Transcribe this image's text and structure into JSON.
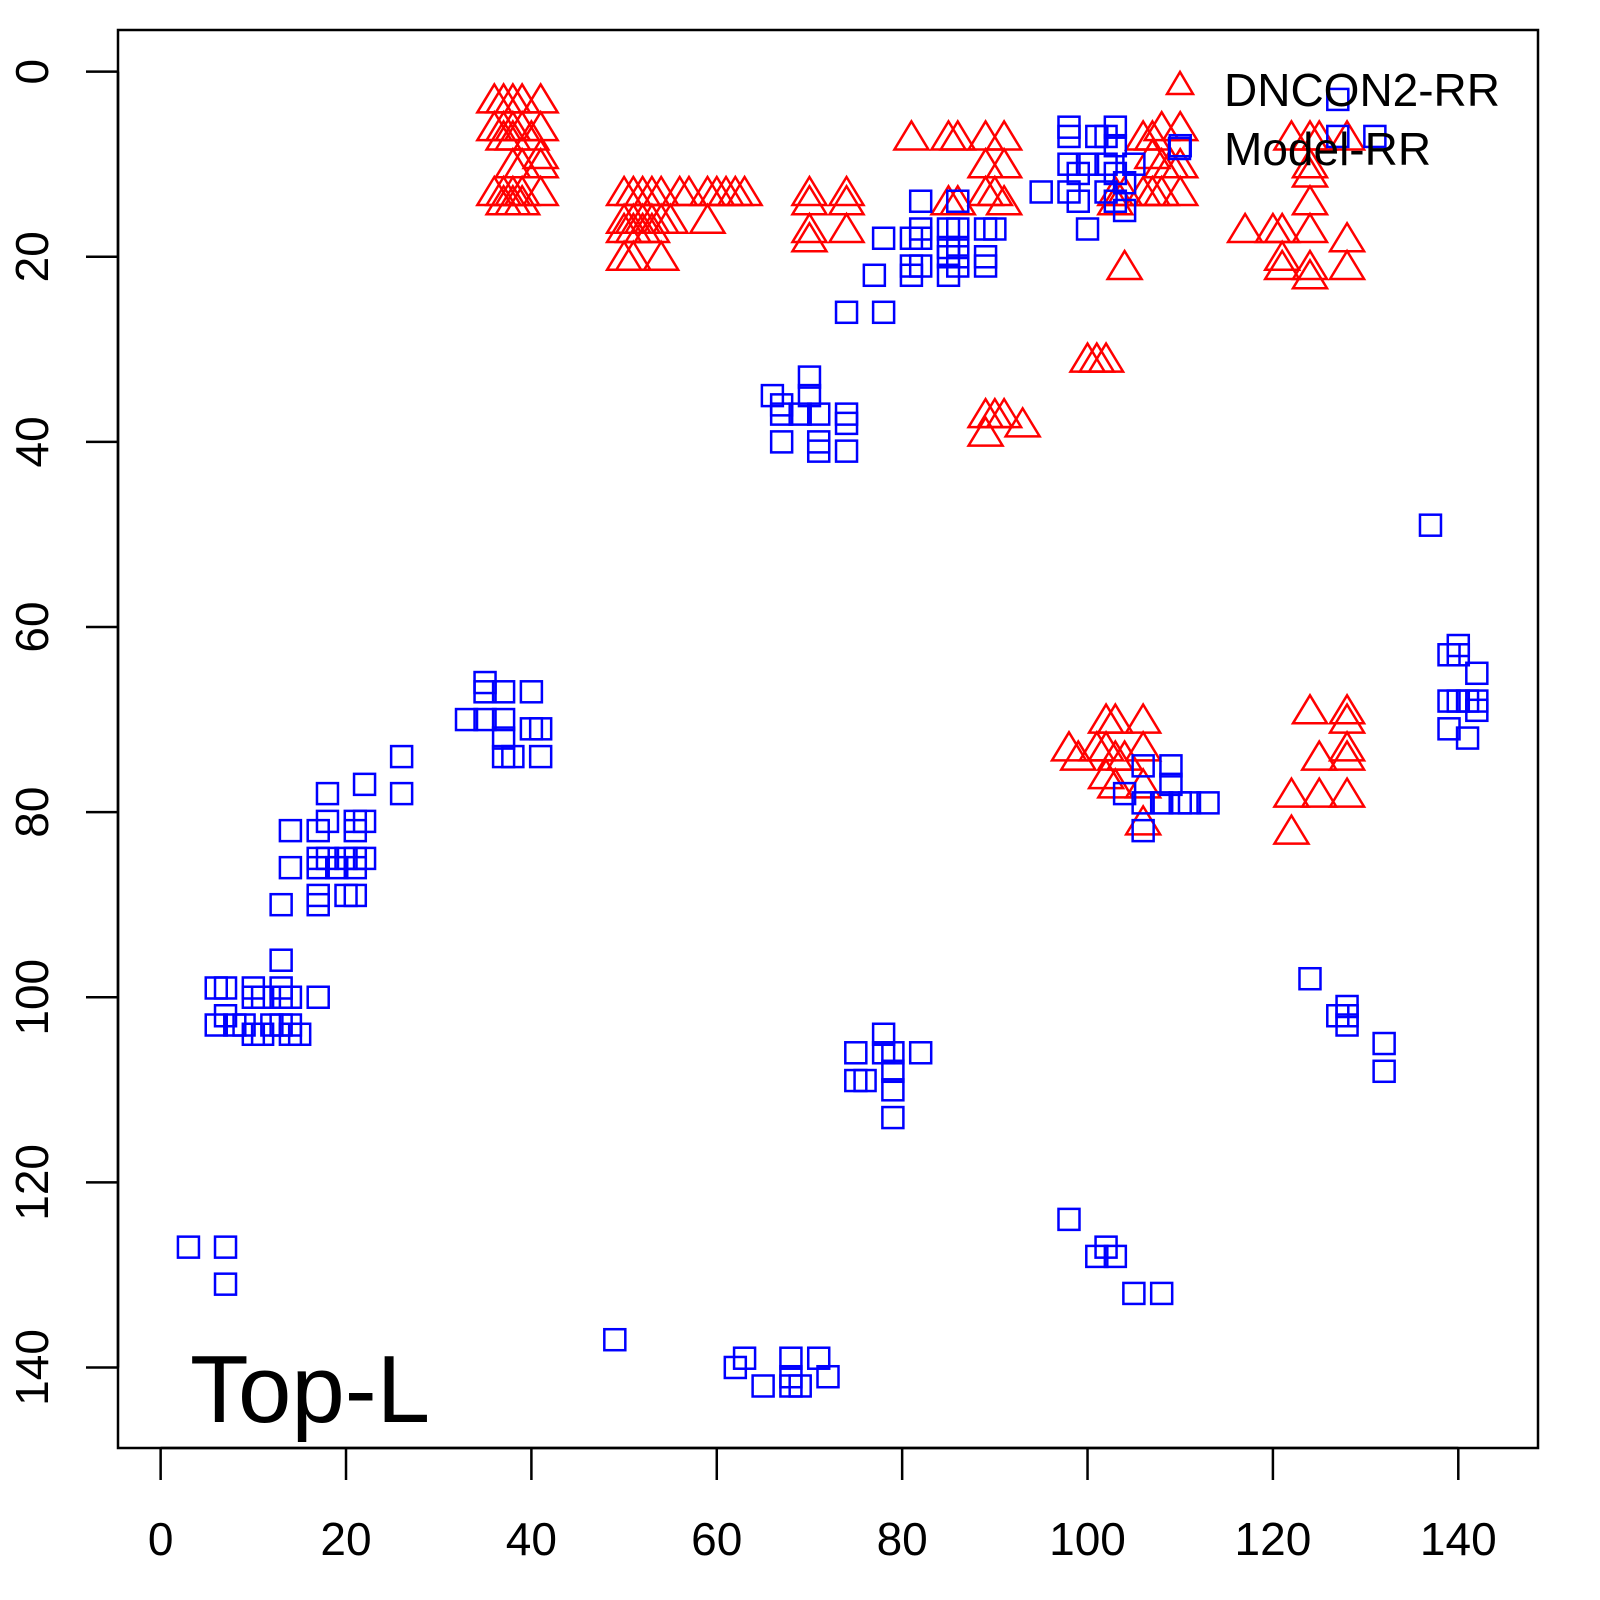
{
  "chart_data": {
    "type": "scatter",
    "title": "",
    "annotation": "Top-L",
    "xlabel": "",
    "ylabel": "",
    "xlim": [
      -4.6,
      148.6
    ],
    "ylim": [
      -4.5,
      148.7
    ],
    "y_inverted": true,
    "x_ticks": [
      "0",
      "20",
      "40",
      "60",
      "80",
      "100",
      "120",
      "140"
    ],
    "y_ticks": [
      "0",
      "20",
      "40",
      "60",
      "80",
      "100",
      "120",
      "140"
    ],
    "grid": false,
    "legend": {
      "placement": "top-right",
      "entries": [
        "DNCON2-RR",
        "Model-RR"
      ]
    },
    "series": [
      {
        "name": "DNCON2-RR",
        "marker": "triangle",
        "color": "#ff0000",
        "points": [
          [
            36,
            3
          ],
          [
            37,
            3
          ],
          [
            38,
            3
          ],
          [
            39,
            3
          ],
          [
            41,
            3
          ],
          [
            36,
            6
          ],
          [
            37,
            6
          ],
          [
            38,
            6
          ],
          [
            39,
            6
          ],
          [
            41,
            6
          ],
          [
            37,
            7
          ],
          [
            38,
            7
          ],
          [
            40,
            7
          ],
          [
            38,
            10
          ],
          [
            39,
            10
          ],
          [
            41,
            10
          ],
          [
            41,
            9
          ],
          [
            36,
            13
          ],
          [
            37,
            13
          ],
          [
            38,
            13
          ],
          [
            39,
            13
          ],
          [
            41,
            13
          ],
          [
            37,
            14
          ],
          [
            38,
            14
          ],
          [
            39,
            14
          ],
          [
            50,
            13
          ],
          [
            51,
            13
          ],
          [
            52,
            13
          ],
          [
            53,
            13
          ],
          [
            54,
            13
          ],
          [
            56,
            13
          ],
          [
            57,
            13
          ],
          [
            59,
            13
          ],
          [
            60,
            13
          ],
          [
            61,
            13
          ],
          [
            62,
            13
          ],
          [
            63,
            13
          ],
          [
            50,
            16
          ],
          [
            51,
            16
          ],
          [
            52,
            16
          ],
          [
            53,
            16
          ],
          [
            54,
            16
          ],
          [
            55,
            16
          ],
          [
            59,
            16
          ],
          [
            50,
            17
          ],
          [
            51,
            17
          ],
          [
            52,
            17
          ],
          [
            53,
            17
          ],
          [
            50,
            20
          ],
          [
            51,
            20
          ],
          [
            54,
            20
          ],
          [
            70,
            13
          ],
          [
            74,
            13
          ],
          [
            70,
            14
          ],
          [
            74,
            14
          ],
          [
            70,
            17
          ],
          [
            74,
            17
          ],
          [
            70,
            18
          ],
          [
            81,
            7
          ],
          [
            85,
            7
          ],
          [
            86,
            7
          ],
          [
            89,
            7
          ],
          [
            91,
            7
          ],
          [
            89,
            10
          ],
          [
            91,
            10
          ],
          [
            85,
            14
          ],
          [
            86,
            14
          ],
          [
            89,
            13
          ],
          [
            91,
            14
          ],
          [
            90,
            13
          ],
          [
            89,
            37
          ],
          [
            90,
            37
          ],
          [
            91,
            37
          ],
          [
            93,
            38
          ],
          [
            89,
            39
          ],
          [
            100,
            31
          ],
          [
            101,
            31
          ],
          [
            102,
            31
          ],
          [
            103,
            13
          ],
          [
            104,
            13
          ],
          [
            106,
            13
          ],
          [
            107,
            13
          ],
          [
            108,
            13
          ],
          [
            110,
            13
          ],
          [
            106,
            7
          ],
          [
            107,
            7
          ],
          [
            108,
            6
          ],
          [
            110,
            6
          ],
          [
            108,
            10
          ],
          [
            109,
            10
          ],
          [
            110,
            10
          ],
          [
            104,
            21
          ],
          [
            103,
            14
          ],
          [
            107,
            9
          ],
          [
            122,
            7
          ],
          [
            124,
            7
          ],
          [
            125,
            7
          ],
          [
            128,
            7
          ],
          [
            124,
            10
          ],
          [
            124,
            11
          ],
          [
            124,
            14
          ],
          [
            117,
            17
          ],
          [
            120,
            17
          ],
          [
            121,
            17
          ],
          [
            124,
            17
          ],
          [
            128,
            18
          ],
          [
            121,
            20
          ],
          [
            121,
            21
          ],
          [
            124,
            21
          ],
          [
            124,
            22
          ],
          [
            128,
            21
          ],
          [
            98,
            73
          ],
          [
            99,
            74
          ],
          [
            102,
            70
          ],
          [
            103,
            70
          ],
          [
            106,
            70
          ],
          [
            101,
            73
          ],
          [
            102,
            73
          ],
          [
            103,
            74
          ],
          [
            106,
            73
          ],
          [
            102,
            76
          ],
          [
            103,
            77
          ],
          [
            106,
            77
          ],
          [
            106,
            81
          ],
          [
            104,
            74
          ],
          [
            124,
            69
          ],
          [
            128,
            69
          ],
          [
            128,
            70
          ],
          [
            125,
            74
          ],
          [
            128,
            73
          ],
          [
            128,
            74
          ],
          [
            122,
            78
          ],
          [
            125,
            78
          ],
          [
            128,
            78
          ],
          [
            122,
            82
          ]
        ]
      },
      {
        "name": "Model-RR",
        "marker": "square",
        "color": "#0000ff",
        "points": [
          [
            3,
            127
          ],
          [
            7,
            127
          ],
          [
            7,
            131
          ],
          [
            49,
            137
          ],
          [
            62,
            140
          ],
          [
            63,
            139
          ],
          [
            65,
            142
          ],
          [
            68,
            139
          ],
          [
            68,
            141
          ],
          [
            68,
            142
          ],
          [
            69,
            142
          ],
          [
            71,
            139
          ],
          [
            72,
            141
          ],
          [
            98,
            124
          ],
          [
            101,
            128
          ],
          [
            102,
            127
          ],
          [
            103,
            128
          ],
          [
            105,
            132
          ],
          [
            108,
            132
          ],
          [
            75,
            106
          ],
          [
            75,
            109
          ],
          [
            76,
            109
          ],
          [
            78,
            104
          ],
          [
            78,
            106
          ],
          [
            79,
            106
          ],
          [
            79,
            108
          ],
          [
            79,
            110
          ],
          [
            79,
            113
          ],
          [
            82,
            106
          ],
          [
            124,
            98
          ],
          [
            127,
            102
          ],
          [
            128,
            101
          ],
          [
            128,
            102
          ],
          [
            128,
            103
          ],
          [
            132,
            105
          ],
          [
            132,
            108
          ],
          [
            137,
            49
          ],
          [
            139,
            63
          ],
          [
            140,
            62
          ],
          [
            140,
            63
          ],
          [
            139,
            68
          ],
          [
            140,
            68
          ],
          [
            141,
            68
          ],
          [
            142,
            65
          ],
          [
            142,
            68
          ],
          [
            142,
            69
          ],
          [
            139,
            71
          ],
          [
            141,
            72
          ],
          [
            104,
            78
          ],
          [
            106,
            75
          ],
          [
            106,
            79
          ],
          [
            106,
            82
          ],
          [
            108,
            79
          ],
          [
            109,
            75
          ],
          [
            109,
            77
          ],
          [
            110,
            79
          ],
          [
            111,
            79
          ],
          [
            113,
            79
          ],
          [
            6,
            99
          ],
          [
            7,
            99
          ],
          [
            6,
            103
          ],
          [
            7,
            102
          ],
          [
            8,
            103
          ],
          [
            9,
            103
          ],
          [
            10,
            99
          ],
          [
            10,
            100
          ],
          [
            11,
            100
          ],
          [
            12,
            103
          ],
          [
            10,
            104
          ],
          [
            11,
            104
          ],
          [
            13,
            96
          ],
          [
            13,
            99
          ],
          [
            13,
            100
          ],
          [
            14,
            103
          ],
          [
            14,
            100
          ],
          [
            14,
            104
          ],
          [
            15,
            104
          ],
          [
            17,
            100
          ],
          [
            13,
            103
          ],
          [
            13,
            90
          ],
          [
            14,
            82
          ],
          [
            14,
            86
          ],
          [
            17,
            82
          ],
          [
            17,
            85
          ],
          [
            17,
            86
          ],
          [
            17,
            89
          ],
          [
            17,
            90
          ],
          [
            18,
            78
          ],
          [
            18,
            81
          ],
          [
            18,
            85
          ],
          [
            19,
            86
          ],
          [
            20,
            85
          ],
          [
            20,
            89
          ],
          [
            21,
            81
          ],
          [
            21,
            82
          ],
          [
            21,
            85
          ],
          [
            21,
            86
          ],
          [
            21,
            89
          ],
          [
            22,
            77
          ],
          [
            22,
            81
          ],
          [
            22,
            85
          ],
          [
            26,
            74
          ],
          [
            26,
            78
          ],
          [
            33,
            70
          ],
          [
            35,
            66
          ],
          [
            35,
            67
          ],
          [
            35,
            70
          ],
          [
            37,
            67
          ],
          [
            37,
            70
          ],
          [
            37,
            72
          ],
          [
            37,
            74
          ],
          [
            38,
            74
          ],
          [
            40,
            67
          ],
          [
            40,
            71
          ],
          [
            41,
            71
          ],
          [
            41,
            74
          ],
          [
            66,
            35
          ],
          [
            67,
            36
          ],
          [
            67,
            37
          ],
          [
            67,
            40
          ],
          [
            69,
            37
          ],
          [
            70,
            33
          ],
          [
            70,
            35
          ],
          [
            71,
            37
          ],
          [
            71,
            40
          ],
          [
            71,
            41
          ],
          [
            74,
            37
          ],
          [
            74,
            38
          ],
          [
            74,
            41
          ],
          [
            74,
            26
          ],
          [
            77,
            22
          ],
          [
            78,
            18
          ],
          [
            78,
            26
          ],
          [
            81,
            18
          ],
          [
            81,
            21
          ],
          [
            81,
            22
          ],
          [
            82,
            14
          ],
          [
            82,
            17
          ],
          [
            82,
            18
          ],
          [
            82,
            21
          ],
          [
            85,
            17
          ],
          [
            85,
            19
          ],
          [
            85,
            20
          ],
          [
            85,
            22
          ],
          [
            86,
            14
          ],
          [
            86,
            17
          ],
          [
            86,
            19
          ],
          [
            86,
            20
          ],
          [
            86,
            21
          ],
          [
            89,
            17
          ],
          [
            89,
            20
          ],
          [
            89,
            21
          ],
          [
            90,
            17
          ],
          [
            95,
            13
          ],
          [
            98,
            6
          ],
          [
            98,
            7
          ],
          [
            98,
            10
          ],
          [
            98,
            13
          ],
          [
            99,
            11
          ],
          [
            99,
            14
          ],
          [
            100,
            10
          ],
          [
            100,
            17
          ],
          [
            101,
            7
          ],
          [
            102,
            7
          ],
          [
            102,
            10
          ],
          [
            102,
            13
          ],
          [
            103,
            6
          ],
          [
            103,
            8
          ],
          [
            103,
            11
          ],
          [
            103,
            14
          ],
          [
            104,
            12
          ],
          [
            104,
            15
          ],
          [
            105,
            10
          ],
          [
            110,
            8
          ],
          [
            127,
            3
          ],
          [
            127,
            7
          ],
          [
            131,
            7
          ]
        ]
      }
    ]
  }
}
